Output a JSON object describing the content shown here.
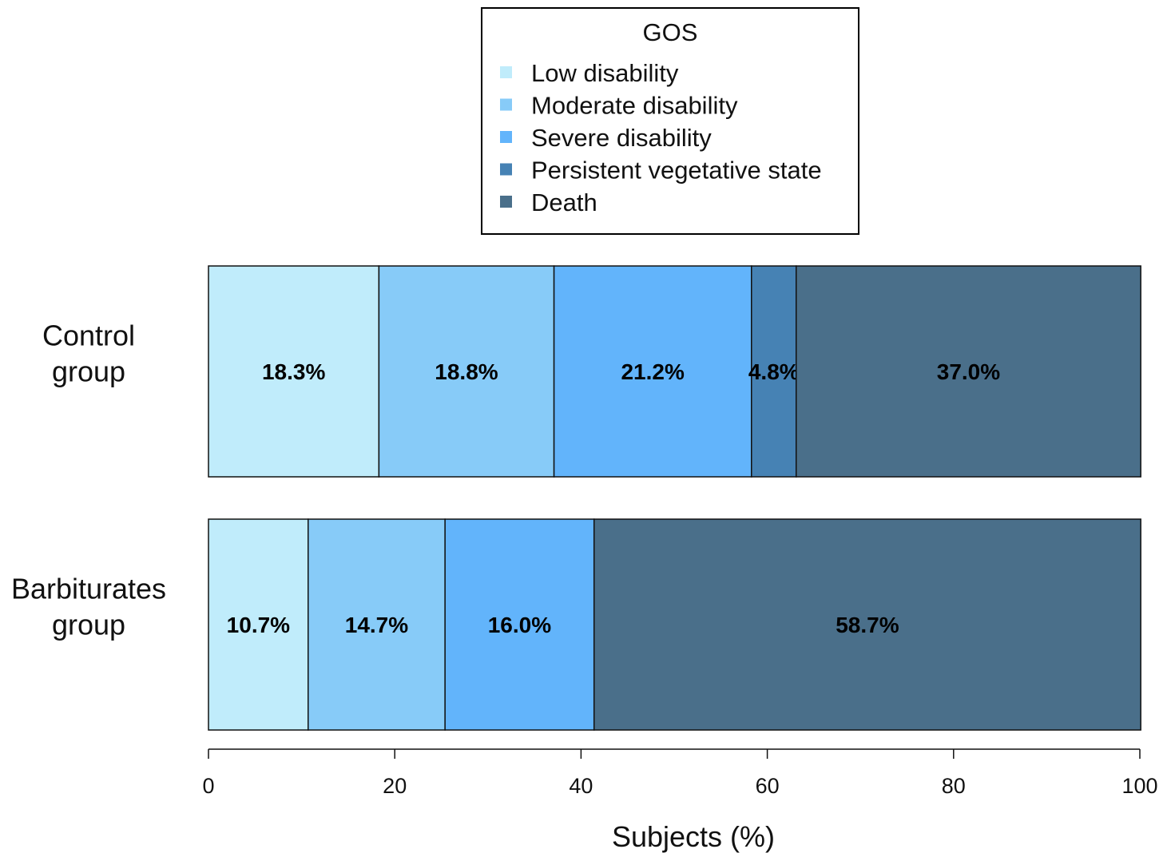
{
  "chart_data": {
    "type": "bar",
    "orientation": "horizontal",
    "stacked": true,
    "xlabel": "Subjects (%)",
    "xlim": [
      0,
      100
    ],
    "xticks": [
      0,
      20,
      40,
      60,
      80,
      100
    ],
    "categories": [
      "Control\ngroup",
      "Barbiturates\ngroup"
    ],
    "legend": {
      "title": "GOS",
      "placement": "top-center"
    },
    "series": [
      {
        "name": "Low disability",
        "color": "#c0ecfb",
        "values": [
          18.3,
          10.7
        ],
        "labels": [
          "18.3%",
          "10.7%"
        ]
      },
      {
        "name": "Moderate disability",
        "color": "#87cbf8",
        "values": [
          18.8,
          14.7
        ],
        "labels": [
          "18.8%",
          "14.7%"
        ]
      },
      {
        "name": "Severe disability",
        "color": "#62b4fb",
        "values": [
          21.2,
          16.0
        ],
        "labels": [
          "21.2%",
          "16.0%"
        ]
      },
      {
        "name": "Persistent vegetative state",
        "color": "#4682b4",
        "values": [
          4.8,
          0
        ],
        "labels": [
          "4.8%",
          ""
        ]
      },
      {
        "name": "Death",
        "color": "#4a6f8a",
        "values": [
          37.0,
          58.7
        ],
        "labels": [
          "37.0%",
          "58.7%"
        ]
      }
    ]
  }
}
